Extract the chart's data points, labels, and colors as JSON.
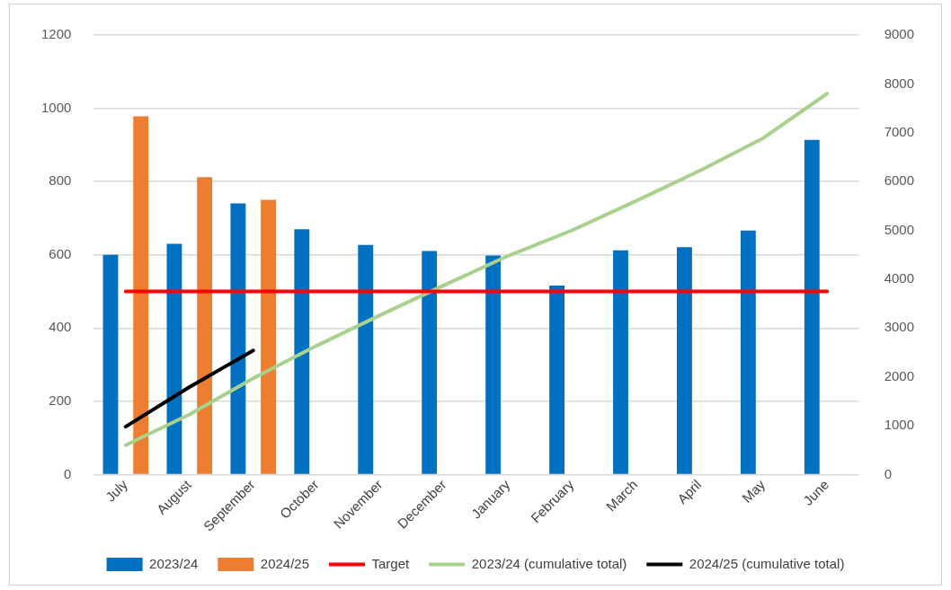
{
  "chart_data": {
    "type": "bar",
    "categories": [
      "July",
      "August",
      "September",
      "October",
      "November",
      "December",
      "January",
      "February",
      "March",
      "April",
      "May",
      "June"
    ],
    "series": [
      {
        "name": "2023/24",
        "color": "#0070c0",
        "values": [
          600,
          630,
          740,
          670,
          627,
          610,
          598,
          516,
          612,
          621,
          666,
          914
        ]
      },
      {
        "name": "2024/25",
        "color": "#ed7d31",
        "values": [
          978,
          812,
          750,
          null,
          null,
          null,
          null,
          null,
          null,
          null,
          null,
          null
        ]
      },
      {
        "name": "Target",
        "type": "line",
        "color": "#ff0000",
        "values": [
          500,
          500,
          500,
          500,
          500,
          500,
          500,
          500,
          500,
          500,
          500,
          500
        ]
      },
      {
        "name": "2023/24 (cumulative total)",
        "type": "line",
        "axis": "y2",
        "color": "#a9d18e",
        "values": [
          600,
          1230,
          1970,
          2640,
          3270,
          3880,
          4480,
          5000,
          5600,
          6220,
          6890,
          7800
        ]
      },
      {
        "name": "2024/25 (cumulative total)",
        "type": "line",
        "axis": "y2",
        "color": "#000000",
        "values": [
          980,
          1790,
          2540,
          null,
          null,
          null,
          null,
          null,
          null,
          null,
          null,
          null
        ]
      }
    ],
    "ylim": [
      0,
      1200
    ],
    "yticks": [
      0,
      200,
      400,
      600,
      800,
      1000,
      1200
    ],
    "y2lim": [
      0,
      9000
    ],
    "y2ticks": [
      0,
      1000,
      2000,
      3000,
      4000,
      5000,
      6000,
      7000,
      8000,
      9000
    ],
    "grid": "y",
    "legend": "bottom",
    "marker": "none",
    "line_style": "solid"
  }
}
